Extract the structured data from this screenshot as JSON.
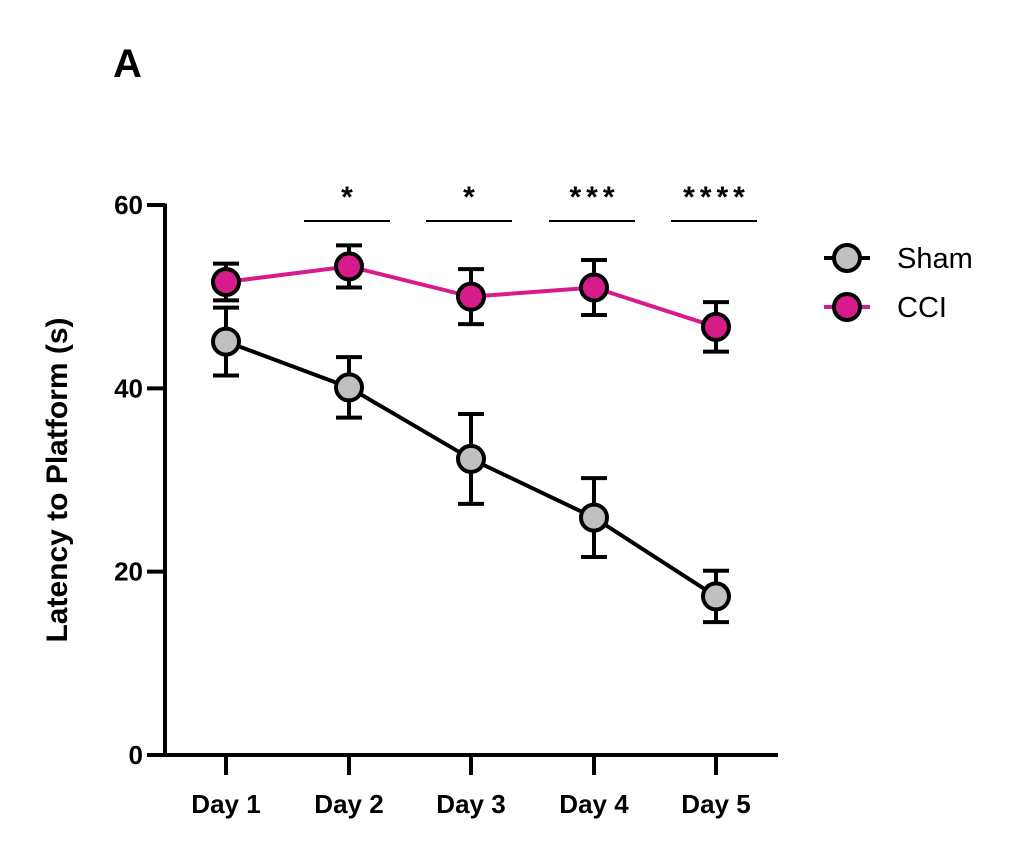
{
  "panel_letter": "A",
  "chart_data": {
    "type": "line",
    "title": "",
    "xlabel": "",
    "ylabel": "Latency to  Platform (s)",
    "categories": [
      "Day 1",
      "Day 2",
      "Day 3",
      "Day 4",
      "Day 5"
    ],
    "ylim": [
      0,
      60
    ],
    "yticks": [
      0,
      20,
      40,
      60
    ],
    "grid": false,
    "legend_position": "top-right",
    "series": [
      {
        "name": "Sham",
        "values": [
          45.1,
          40.1,
          32.3,
          25.9,
          17.3
        ],
        "errors": [
          3.7,
          3.3,
          4.9,
          4.3,
          2.8
        ],
        "line_color": "#000000",
        "marker_fill": "#c0c0c0"
      },
      {
        "name": "CCI",
        "values": [
          51.6,
          53.3,
          50.0,
          51.0,
          46.7
        ],
        "errors": [
          2.0,
          2.3,
          3.0,
          3.0,
          2.7
        ],
        "line_color": "#d81b8a",
        "marker_fill": "#d81b8a"
      }
    ],
    "annotations": [
      {
        "category": "Day 2",
        "text": "*"
      },
      {
        "category": "Day 3",
        "text": "*"
      },
      {
        "category": "Day 4",
        "text": "***"
      },
      {
        "category": "Day 5",
        "text": "****"
      }
    ]
  }
}
